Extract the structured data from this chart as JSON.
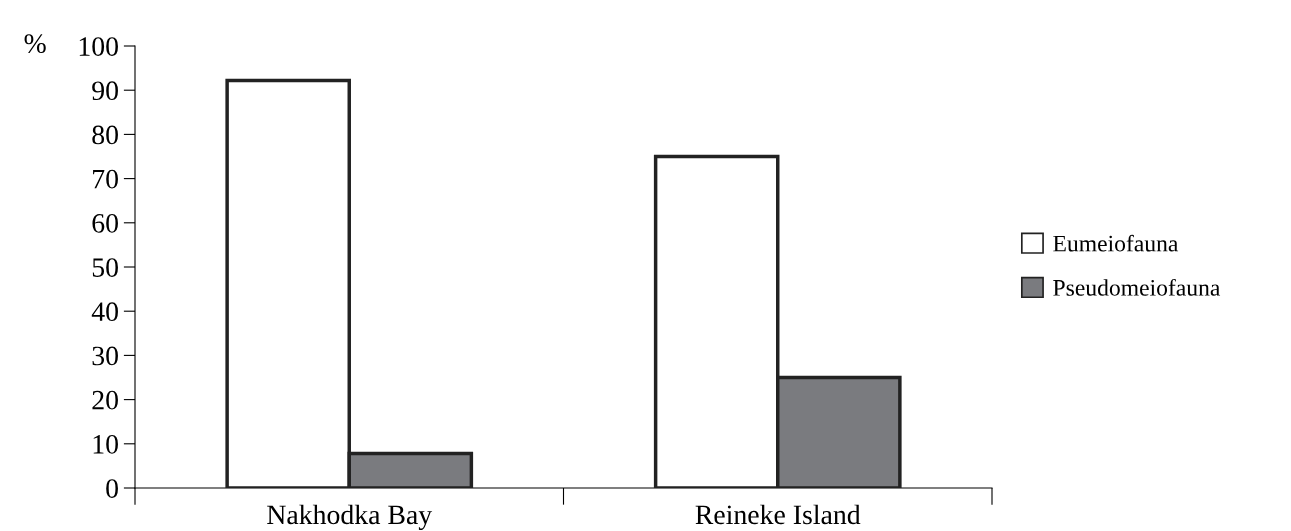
{
  "chart_data": {
    "type": "bar",
    "ylabel": "%",
    "categories": [
      "Nakhodka Bay",
      "Reineke Island"
    ],
    "series": [
      {
        "name": "Eumeiofauna",
        "color": "#ffffff",
        "values": [
          92.2,
          75
        ]
      },
      {
        "name": "Pseudomeiofauna",
        "color": "#7a7b7f",
        "values": [
          7.8,
          25
        ]
      }
    ],
    "ylim": [
      0,
      100
    ],
    "yticks": [
      0,
      10,
      20,
      30,
      40,
      50,
      60,
      70,
      80,
      90,
      100
    ],
    "grid": false,
    "legend": "right"
  }
}
